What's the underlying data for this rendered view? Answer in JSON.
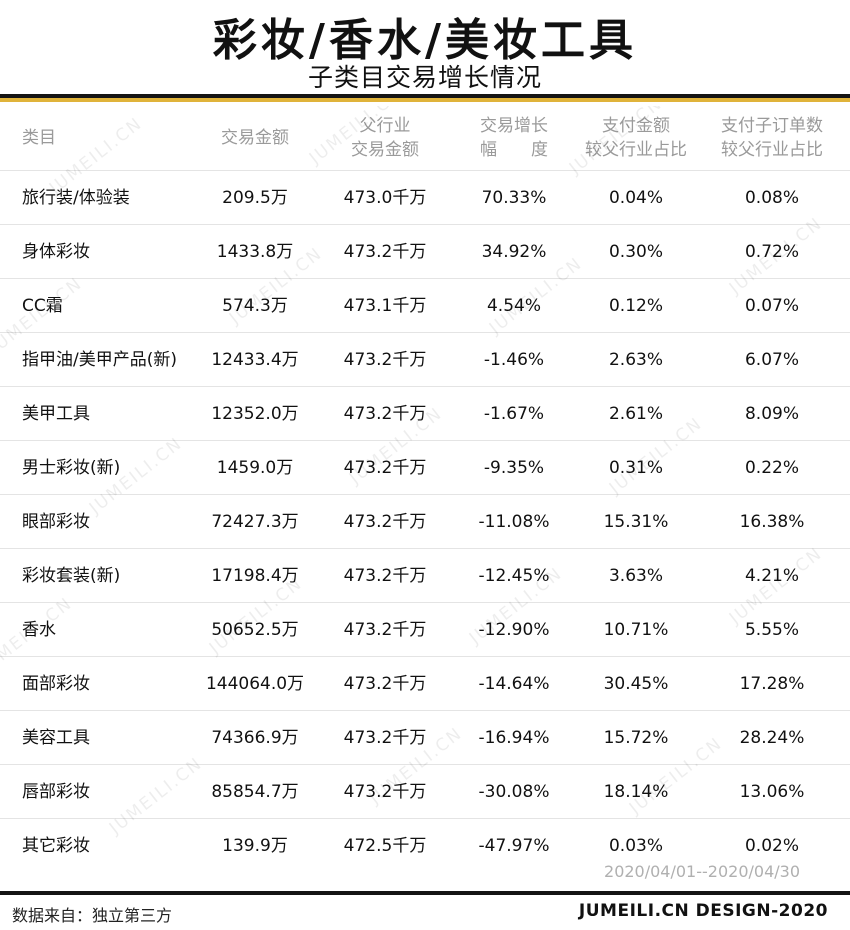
{
  "title": "彩妆/香水/美妆工具",
  "subtitle": "子类目交易增长情况",
  "watermark": "JUMEILI.CN",
  "headers": [
    [
      "类目"
    ],
    [
      "交易金额"
    ],
    [
      "父行业",
      "交易金额"
    ],
    [
      "交易增长",
      "幅　　度"
    ],
    [
      "支付金额",
      "较父行业占比"
    ],
    [
      "支付子订单数",
      "较父行业占比"
    ]
  ],
  "rows": [
    [
      "旅行装/体验装",
      "209.5万",
      "473.0千万",
      "70.33%",
      "0.04%",
      "0.08%"
    ],
    [
      "身体彩妆",
      "1433.8万",
      "473.2千万",
      "34.92%",
      "0.30%",
      "0.72%"
    ],
    [
      "CC霜",
      "574.3万",
      "473.1千万",
      "4.54%",
      "0.12%",
      "0.07%"
    ],
    [
      "指甲油/美甲产品(新)",
      "12433.4万",
      "473.2千万",
      "-1.46%",
      "2.63%",
      "6.07%"
    ],
    [
      "美甲工具",
      "12352.0万",
      "473.2千万",
      "-1.67%",
      "2.61%",
      "8.09%"
    ],
    [
      "男士彩妆(新)",
      "1459.0万",
      "473.2千万",
      "-9.35%",
      "0.31%",
      "0.22%"
    ],
    [
      "眼部彩妆",
      "72427.3万",
      "473.2千万",
      "-11.08%",
      "15.31%",
      "16.38%"
    ],
    [
      "彩妆套装(新)",
      "17198.4万",
      "473.2千万",
      "-12.45%",
      "3.63%",
      "4.21%"
    ],
    [
      "香水",
      "50652.5万",
      "473.2千万",
      "-12.90%",
      "10.71%",
      "5.55%"
    ],
    [
      "面部彩妆",
      "144064.0万",
      "473.2千万",
      "-14.64%",
      "30.45%",
      "17.28%"
    ],
    [
      "美容工具",
      "74366.9万",
      "473.2千万",
      "-16.94%",
      "15.72%",
      "28.24%"
    ],
    [
      "唇部彩妆",
      "85854.7万",
      "473.2千万",
      "-30.08%",
      "18.14%",
      "13.06%"
    ],
    [
      "其它彩妆",
      "139.9万",
      "472.5千万",
      "-47.97%",
      "0.03%",
      "0.02%"
    ]
  ],
  "date_range": "2020/04/01--2020/04/30",
  "footer": {
    "source": "数据来自：独立第三方",
    "brand": "JUMEILI.CN DESIGN-2020"
  },
  "colors": {
    "accent_gold": "#e0b33a",
    "rule_black": "#141414",
    "header_text": "#9a9a9a"
  }
}
